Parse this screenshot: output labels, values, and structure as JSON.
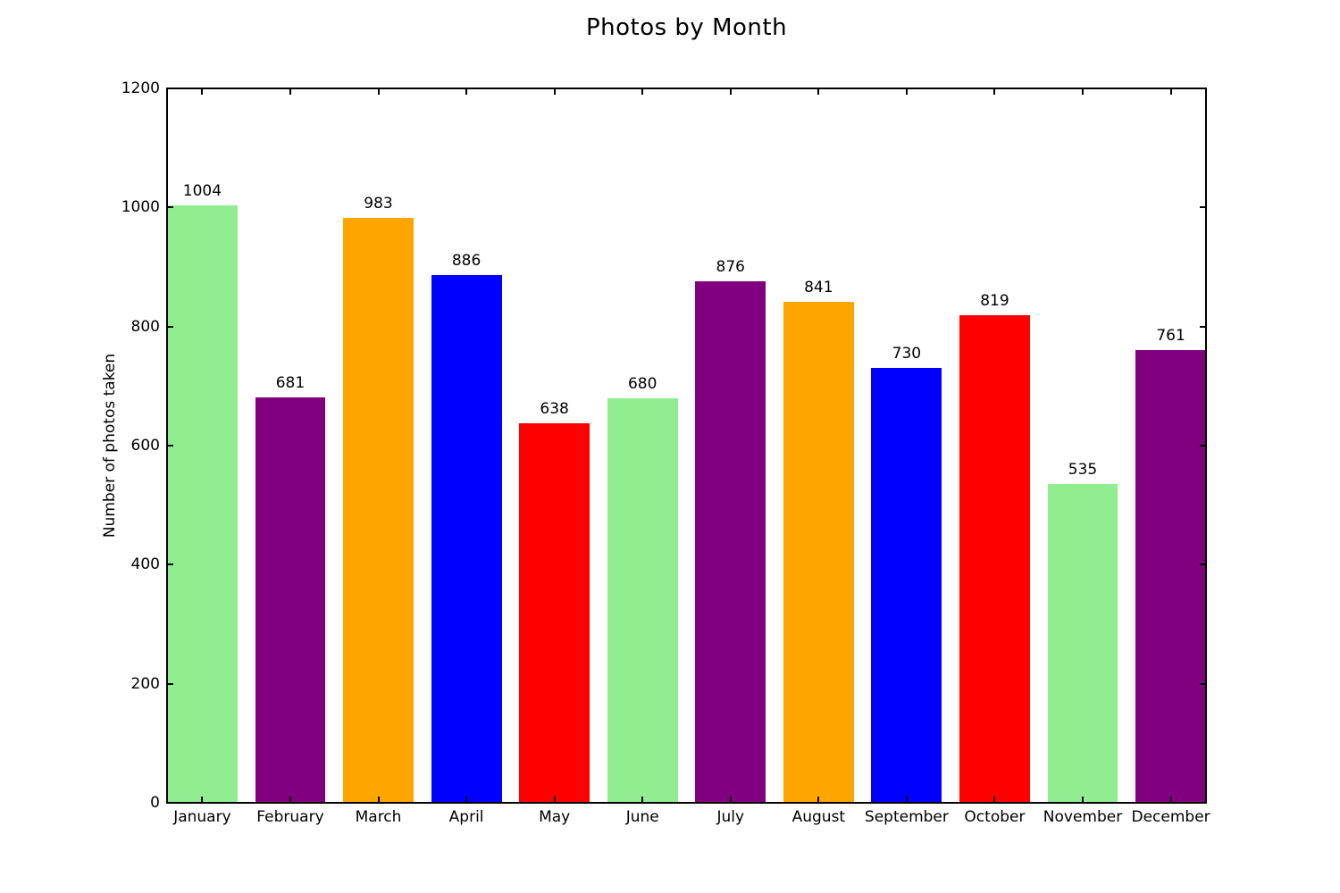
{
  "chart_data": {
    "type": "bar",
    "title": "Photos by Month",
    "xlabel": "",
    "ylabel": "Number of photos taken",
    "categories": [
      "January",
      "February",
      "March",
      "April",
      "May",
      "June",
      "July",
      "August",
      "September",
      "October",
      "November",
      "December"
    ],
    "values": [
      1004,
      681,
      983,
      886,
      638,
      680,
      876,
      841,
      730,
      819,
      535,
      761
    ],
    "bar_colors": [
      "#90EE90",
      "#800080",
      "#FFA500",
      "#0000FF",
      "#FF0000",
      "#90EE90",
      "#800080",
      "#FFA500",
      "#0000FF",
      "#FF0000",
      "#90EE90",
      "#800080"
    ],
    "value_labels": [
      "1004",
      "681",
      "983",
      "886",
      "638",
      "680",
      "876",
      "841",
      "730",
      "819",
      "535",
      "761"
    ],
    "ylim": [
      0,
      1200
    ],
    "yticks": [
      0,
      200,
      400,
      600,
      800,
      1000,
      1200
    ],
    "grid": false,
    "legend": null,
    "background_color": "#ffffff",
    "axis_color": "#000000"
  }
}
